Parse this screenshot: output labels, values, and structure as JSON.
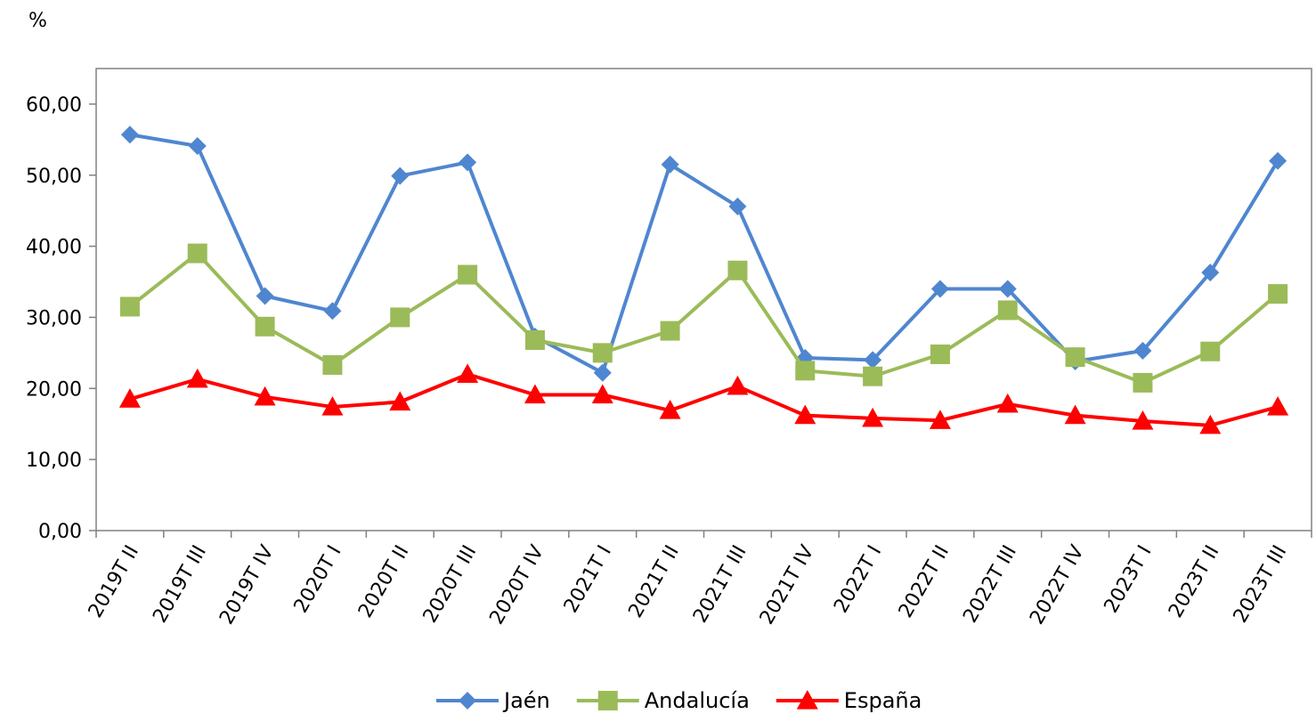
{
  "chart_data": {
    "type": "line",
    "ylabel": "%",
    "ylim": [
      0,
      65
    ],
    "yticks": [
      "0,00",
      "10,00",
      "20,00",
      "30,00",
      "40,00",
      "50,00",
      "60,00"
    ],
    "ytick_values": [
      0,
      10,
      20,
      30,
      40,
      50,
      60
    ],
    "grid": false,
    "legend_position": "bottom",
    "categories": [
      "2019T II",
      "2019T III",
      "2019T IV",
      "2020T I",
      "2020T II",
      "2020T III",
      "2020T IV",
      "2021T I",
      "2021T II",
      "2021T III",
      "2021T IV",
      "2022T I",
      "2022T II",
      "2022T III",
      "2022T IV",
      "2023T I",
      "2023T II",
      "2023T III"
    ],
    "series": [
      {
        "name": "Jaén",
        "color": "#4F86D0",
        "marker": "diamond",
        "values": [
          55.7,
          54.1,
          33.0,
          30.9,
          49.9,
          51.8,
          27.3,
          22.2,
          51.5,
          45.6,
          24.3,
          24.0,
          34.0,
          34.0,
          23.8,
          25.3,
          36.3,
          52.0
        ]
      },
      {
        "name": "Andalucía",
        "color": "#9BBB59",
        "marker": "square",
        "values": [
          31.5,
          39.0,
          28.7,
          23.3,
          30.0,
          36.0,
          26.8,
          25.0,
          28.1,
          36.6,
          22.5,
          21.7,
          24.8,
          31.0,
          24.4,
          20.8,
          25.2,
          33.3
        ]
      },
      {
        "name": "España",
        "color": "#FF0000",
        "marker": "triangle",
        "values": [
          18.5,
          21.3,
          18.8,
          17.4,
          18.1,
          22.0,
          19.1,
          19.1,
          16.9,
          20.3,
          16.2,
          15.8,
          15.5,
          17.8,
          16.2,
          15.4,
          14.8,
          17.4
        ]
      }
    ]
  }
}
